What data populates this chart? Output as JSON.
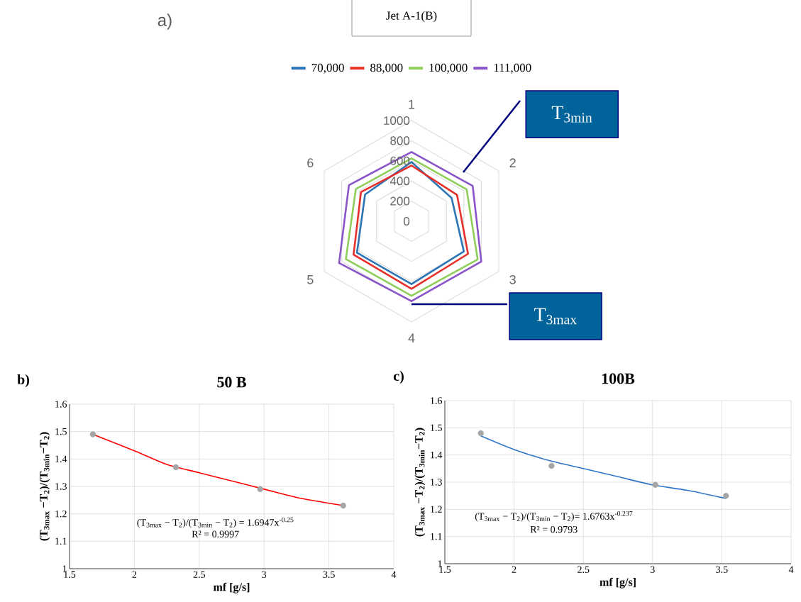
{
  "chart_data": [
    {
      "type": "radar",
      "title": "Jet A-1(B)",
      "categories": [
        "1",
        "2",
        "3",
        "4",
        "5",
        "6"
      ],
      "series": [
        {
          "name": "70,000",
          "color": "#2e75b6",
          "values": [
            588,
            460,
            600,
            624,
            625,
            532
          ]
        },
        {
          "name": "88,000",
          "color": "#e8302a",
          "values": [
            553,
            522,
            648,
            671,
            664,
            579
          ]
        },
        {
          "name": "100,000",
          "color": "#8fce5a",
          "values": [
            624,
            632,
            758,
            741,
            752,
            638
          ]
        },
        {
          "name": "111,000",
          "color": "#8a55c8",
          "values": [
            687,
            701,
            800,
            793,
            830,
            717
          ]
        }
      ],
      "ylim": [
        0,
        1000
      ],
      "yticks": [
        0,
        200,
        400,
        600,
        800,
        1000
      ],
      "grid": true,
      "legend": "top",
      "annotations": [
        "a)",
        "T$_{3min}$",
        "T$_{3max}$"
      ]
    },
    {
      "type": "scatter",
      "title": "50 B",
      "xlabel": "mf [g/s]",
      "ylabel": "(T$_{3max}$ −T$_{2}$)/(T$_{3min}$−T$_{2}$)",
      "series": [
        {
          "type": "scatter",
          "marker": "circle",
          "color": "#a5a5a5",
          "x": [
            1.68,
            2.32,
            2.97,
            3.61
          ],
          "values": [
            1.49,
            1.37,
            1.29,
            1.23
          ]
        },
        {
          "type": "line",
          "marker": "none",
          "color": "#ff0000",
          "x": [
            1.68,
            2.0,
            2.25,
            2.5,
            2.75,
            3.0,
            3.25,
            3.61
          ],
          "values": [
            1.49,
            1.43,
            1.38,
            1.35,
            1.32,
            1.29,
            1.26,
            1.23
          ]
        }
      ],
      "xlim": [
        1.5,
        4
      ],
      "ylim": [
        1,
        1.6
      ],
      "xticks": [
        1.5,
        2,
        2.5,
        3,
        3.5,
        4
      ],
      "yticks": [
        1,
        1.1,
        1.2,
        1.3,
        1.4,
        1.5,
        1.6
      ],
      "grid": true,
      "annotations": [
        "b)",
        "(T$_{3max}$ − T$_{2}$)/(T$_{3min}$ − T$_{2}$) = 1.6947x$^{-0.25}$",
        "R² = 0.9997"
      ]
    },
    {
      "type": "scatter",
      "title": "100B",
      "xlabel": "mf [g/s]",
      "ylabel": "(T$_{3max}$ −T$_{2}$)/(T$_{3min}$−T$_{2}$)",
      "series": [
        {
          "type": "scatter",
          "marker": "circle",
          "color": "#a5a5a5",
          "x": [
            1.76,
            2.27,
            3.02,
            3.53
          ],
          "values": [
            1.48,
            1.36,
            1.29,
            1.25
          ]
        },
        {
          "type": "line",
          "marker": "none",
          "color": "#2e75c8",
          "x": [
            1.76,
            2.0,
            2.25,
            2.5,
            2.75,
            3.0,
            3.25,
            3.53
          ],
          "values": [
            1.47,
            1.42,
            1.38,
            1.35,
            1.32,
            1.29,
            1.27,
            1.24
          ]
        }
      ],
      "xlim": [
        1.5,
        4
      ],
      "ylim": [
        1,
        1.6
      ],
      "xticks": [
        1.5,
        2,
        2.5,
        3,
        3.5,
        4
      ],
      "yticks": [
        1,
        1.1,
        1.2,
        1.3,
        1.4,
        1.5,
        1.6
      ],
      "grid": true,
      "annotations": [
        "c)",
        "(T$_{3max}$ − T$_{2}$)/(T$_{3min}$ − T$_{2}$)= 1.6763x$^{-0.237}$",
        "R² = 0.9793"
      ]
    }
  ]
}
